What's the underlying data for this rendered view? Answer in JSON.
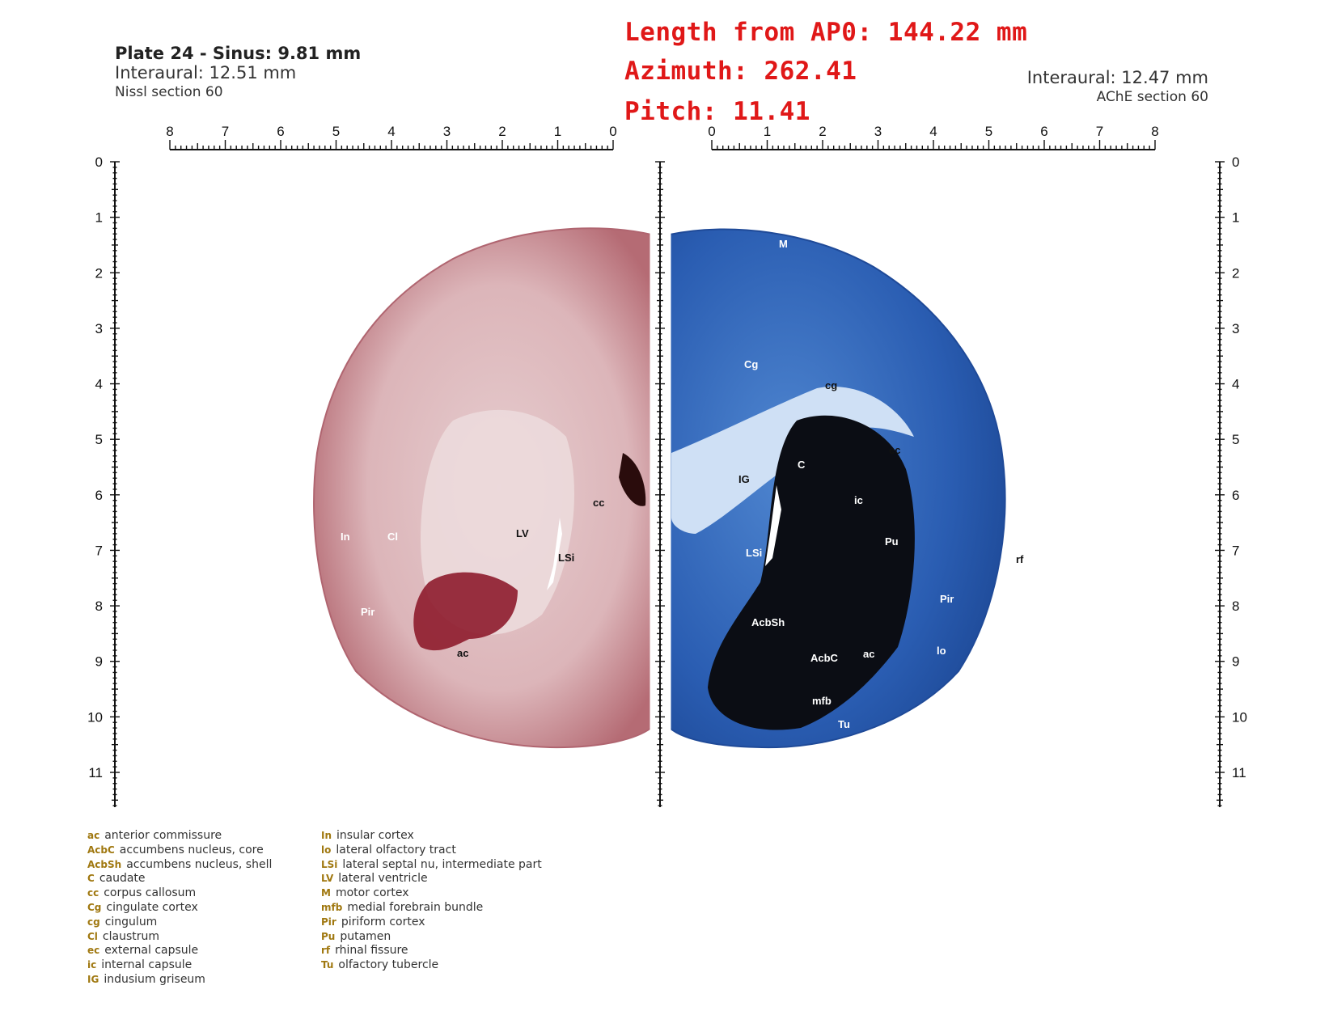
{
  "header_left": {
    "title": "Plate 24 - Sinus: 9.81 mm",
    "interaural": "Interaural: 12.51 mm",
    "section": "Nissl section 60"
  },
  "header_right": {
    "interaural": "Interaural: 12.47 mm",
    "section": "AChE section 60"
  },
  "readout": {
    "length": "Length from AP0: 144.22 mm",
    "azimuth": "Azimuth: 262.41",
    "pitch": "Pitch: 11.41"
  },
  "ruler_top_left": [
    "8",
    "7",
    "6",
    "5",
    "4",
    "3",
    "2",
    "1",
    "0"
  ],
  "ruler_top_right": [
    "0",
    "1",
    "2",
    "3",
    "4",
    "5",
    "6",
    "7",
    "8"
  ],
  "ruler_vertical": [
    "0",
    "1",
    "2",
    "3",
    "4",
    "5",
    "6",
    "7",
    "8",
    "9",
    "10",
    "11"
  ],
  "labels_left": [
    "In",
    "Cl",
    "LV",
    "LSi",
    "cc",
    "Pir",
    "ac"
  ],
  "labels_right": [
    "M",
    "Cg",
    "cg",
    "C",
    "ec",
    "IG",
    "ic",
    "Pu",
    "LSi",
    "rf",
    "Pir",
    "AcbSh",
    "AcbC",
    "ac",
    "lo",
    "mfb",
    "Tu"
  ],
  "legend_col1": [
    {
      "abbr": "ac",
      "desc": "anterior commissure"
    },
    {
      "abbr": "AcbC",
      "desc": "accumbens nucleus, core"
    },
    {
      "abbr": "AcbSh",
      "desc": "accumbens nucleus, shell"
    },
    {
      "abbr": "C",
      "desc": "caudate"
    },
    {
      "abbr": "cc",
      "desc": "corpus callosum"
    },
    {
      "abbr": "Cg",
      "desc": "cingulate cortex"
    },
    {
      "abbr": "cg",
      "desc": "cingulum"
    },
    {
      "abbr": "Cl",
      "desc": "claustrum"
    },
    {
      "abbr": "ec",
      "desc": "external capsule"
    },
    {
      "abbr": "ic",
      "desc": "internal capsule"
    },
    {
      "abbr": "IG",
      "desc": "indusium griseum"
    }
  ],
  "legend_col2": [
    {
      "abbr": "In",
      "desc": "insular cortex"
    },
    {
      "abbr": "lo",
      "desc": "lateral olfactory tract"
    },
    {
      "abbr": "LSi",
      "desc": "lateral septal nu, intermediate part"
    },
    {
      "abbr": "LV",
      "desc": "lateral ventricle"
    },
    {
      "abbr": "M",
      "desc": "motor cortex"
    },
    {
      "abbr": "mfb",
      "desc": "medial forebrain bundle"
    },
    {
      "abbr": "Pir",
      "desc": "piriform cortex"
    },
    {
      "abbr": "Pu",
      "desc": "putamen"
    },
    {
      "abbr": "rf",
      "desc": "rhinal fissure"
    },
    {
      "abbr": "Tu",
      "desc": "olfactory tubercle"
    }
  ],
  "colors": {
    "readout": "#e01818",
    "nissl": "#c98c93",
    "ache": "#2f62b5",
    "legend_abbr": "#a07810"
  }
}
